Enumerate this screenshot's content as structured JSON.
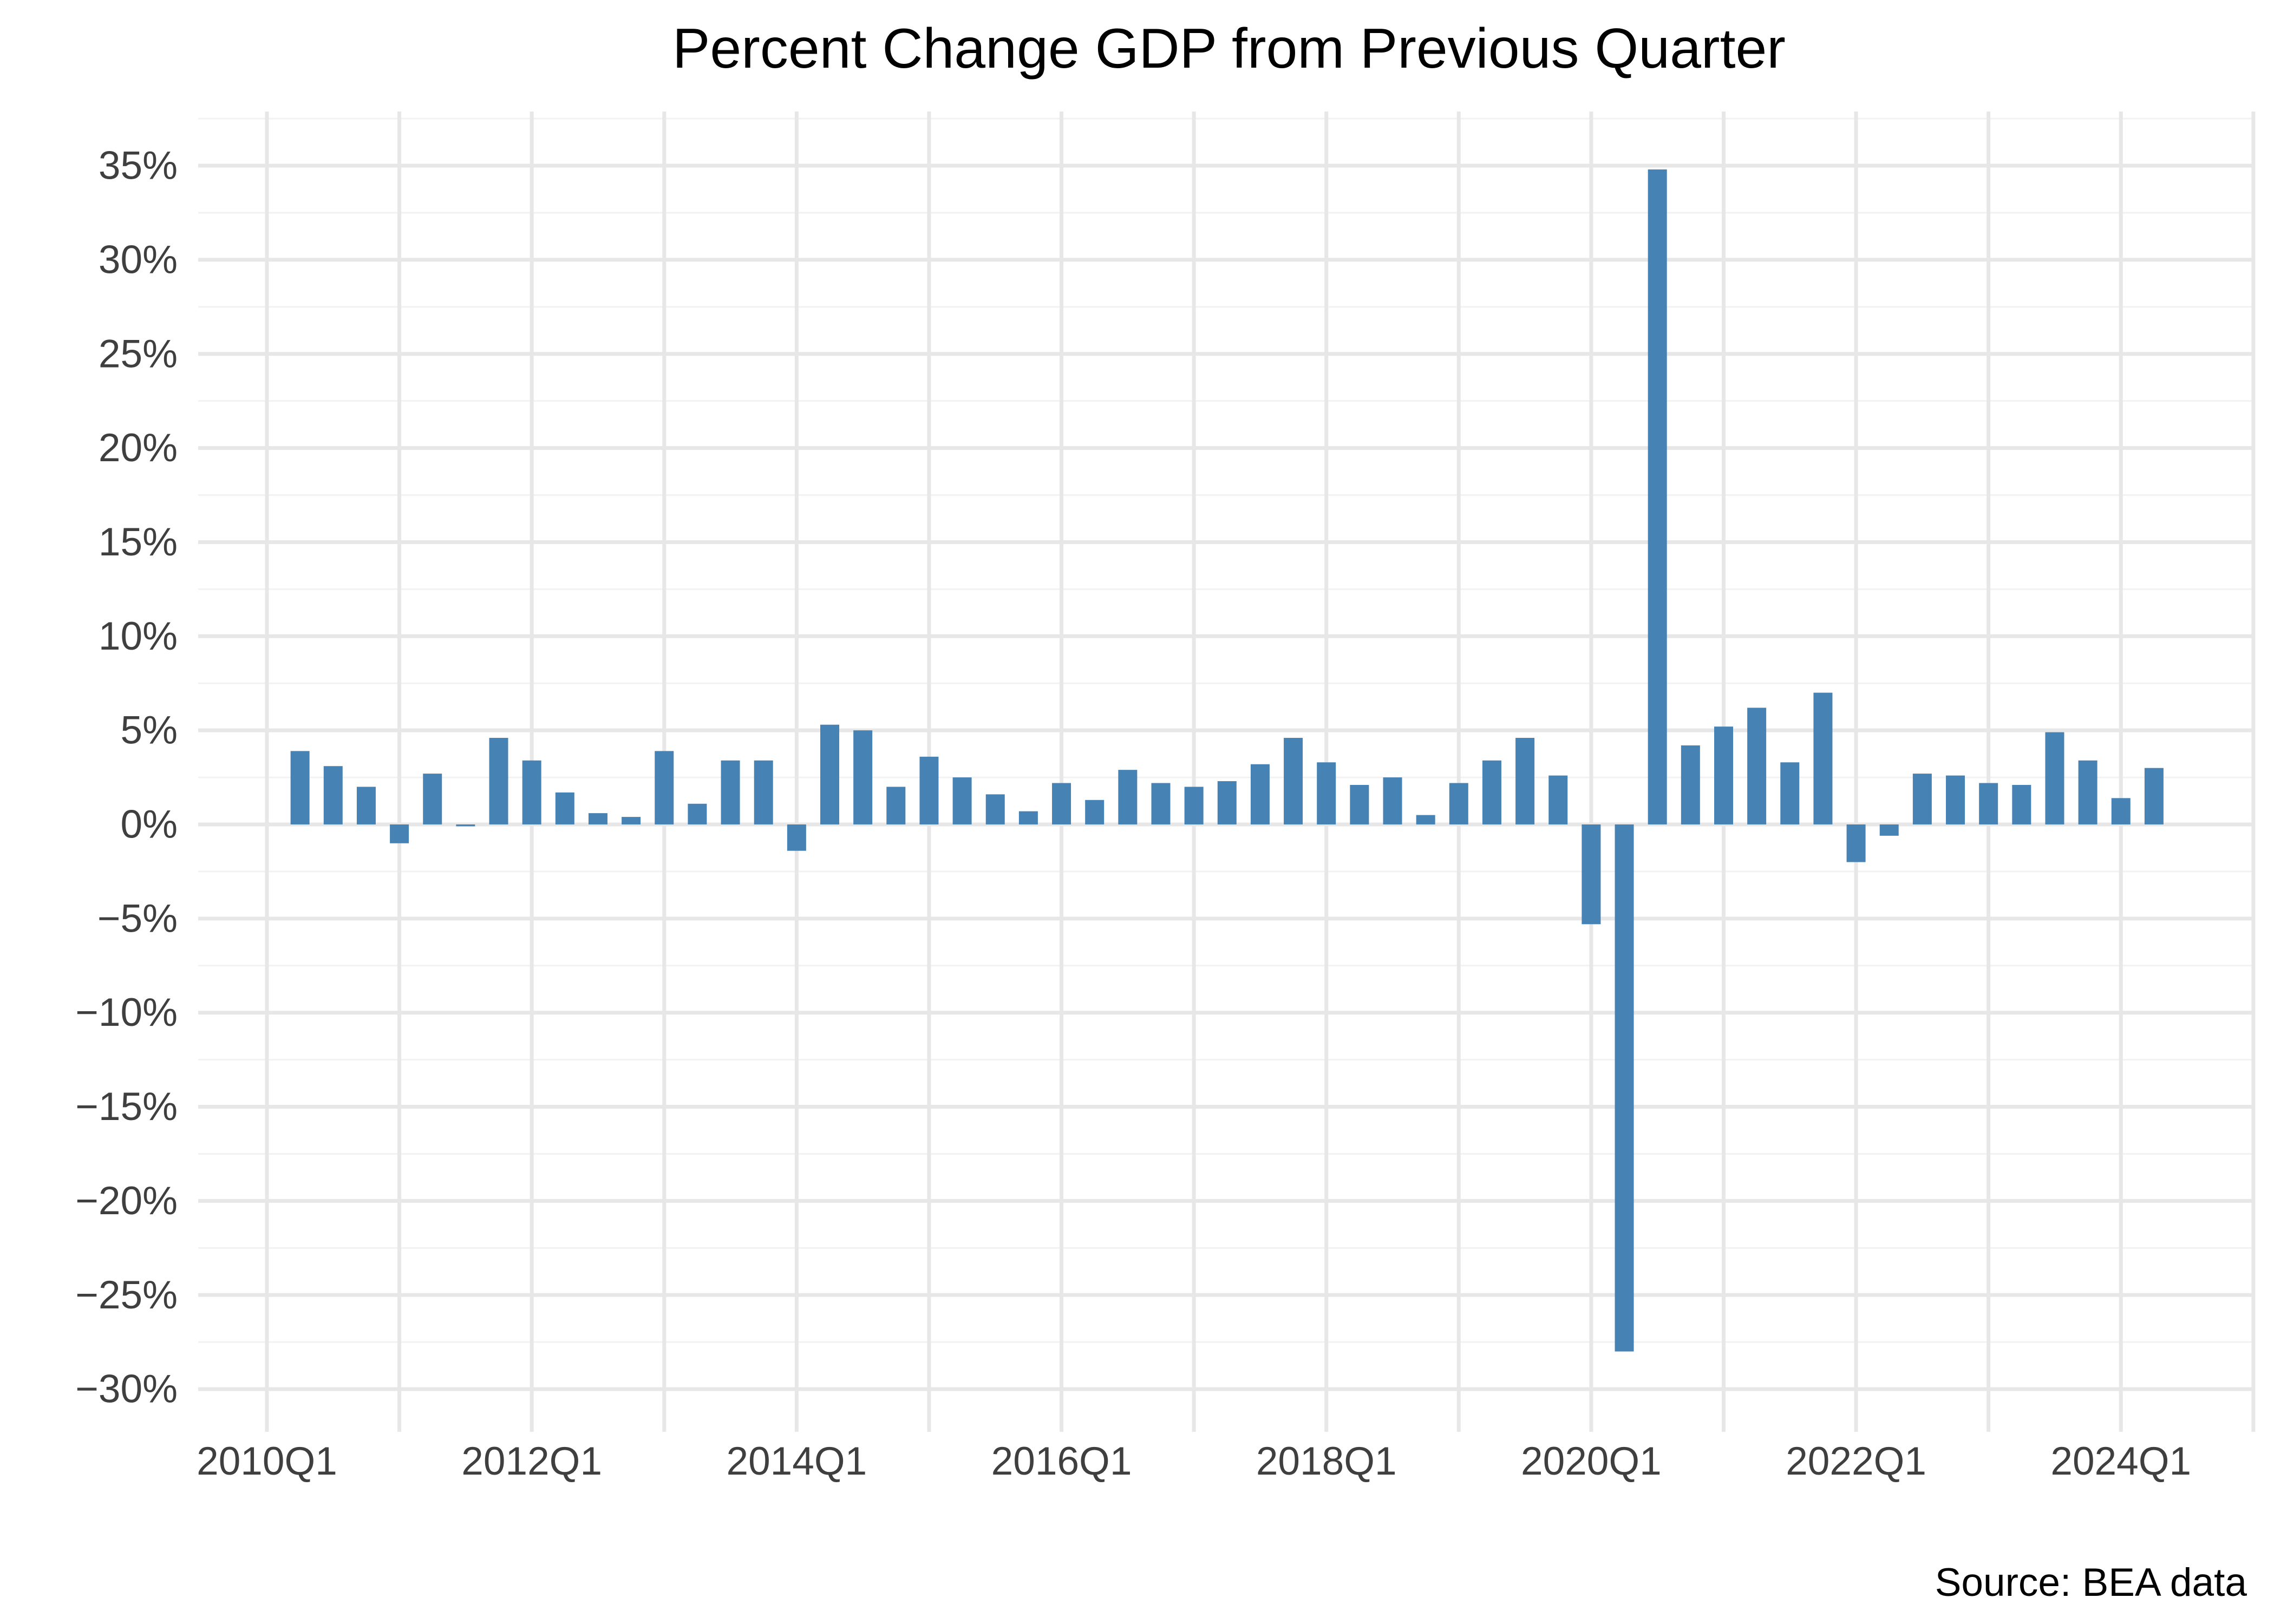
{
  "chart_data": {
    "type": "bar",
    "title": "Percent Change GDP from Previous Quarter",
    "source_note": "Source: BEA data",
    "ylabel": "",
    "xlabel": "",
    "unit": "percent, quarterly annualized rate",
    "legend": "none",
    "grid": "major+minor",
    "bar_color": "#4682B4",
    "ylim": [
      -32.5,
      37.5
    ],
    "y_major_step": 5,
    "y_minor_step": 2.5,
    "x_year_range": [
      2010,
      2025
    ],
    "quarters": [
      "2010Q2",
      "2010Q3",
      "2010Q4",
      "2011Q1",
      "2011Q2",
      "2011Q3",
      "2011Q4",
      "2012Q1",
      "2012Q2",
      "2012Q3",
      "2012Q4",
      "2013Q1",
      "2013Q2",
      "2013Q3",
      "2013Q4",
      "2014Q1",
      "2014Q2",
      "2014Q3",
      "2014Q4",
      "2015Q1",
      "2015Q2",
      "2015Q3",
      "2015Q4",
      "2016Q1",
      "2016Q2",
      "2016Q3",
      "2016Q4",
      "2017Q1",
      "2017Q2",
      "2017Q3",
      "2017Q4",
      "2018Q1",
      "2018Q2",
      "2018Q3",
      "2018Q4",
      "2019Q1",
      "2019Q2",
      "2019Q3",
      "2019Q4",
      "2020Q1",
      "2020Q2",
      "2020Q3",
      "2020Q4",
      "2021Q1",
      "2021Q2",
      "2021Q3",
      "2021Q4",
      "2022Q1",
      "2022Q2",
      "2022Q3",
      "2022Q4",
      "2023Q1",
      "2023Q2",
      "2023Q3",
      "2023Q4",
      "2024Q1",
      "2024Q2"
    ],
    "values": [
      3.9,
      3.1,
      2.0,
      -1.0,
      2.7,
      -0.1,
      4.6,
      3.4,
      1.7,
      0.6,
      0.4,
      3.9,
      1.1,
      3.4,
      3.4,
      -1.4,
      5.3,
      5.0,
      2.0,
      3.6,
      2.5,
      1.6,
      0.7,
      2.2,
      1.3,
      2.9,
      2.2,
      2.0,
      2.3,
      3.2,
      4.6,
      3.3,
      2.1,
      2.5,
      0.5,
      2.2,
      3.4,
      4.6,
      2.6,
      -5.3,
      -28.0,
      34.8,
      4.2,
      5.2,
      6.2,
      3.3,
      7.0,
      -2.0,
      -0.6,
      2.7,
      2.6,
      2.2,
      2.1,
      4.9,
      3.4,
      1.4,
      3.0
    ],
    "x_ticks": [
      {
        "label": "2010Q1",
        "year": 2010
      },
      {
        "label": "2012Q1",
        "year": 2012
      },
      {
        "label": "2014Q1",
        "year": 2014
      },
      {
        "label": "2016Q1",
        "year": 2016
      },
      {
        "label": "2018Q1",
        "year": 2018
      },
      {
        "label": "2020Q1",
        "year": 2020
      },
      {
        "label": "2022Q1",
        "year": 2022
      },
      {
        "label": "2024Q1",
        "year": 2024
      }
    ],
    "y_ticks": [
      {
        "label": "35%",
        "value": 35
      },
      {
        "label": "30%",
        "value": 30
      },
      {
        "label": "25%",
        "value": 25
      },
      {
        "label": "20%",
        "value": 20
      },
      {
        "label": "15%",
        "value": 15
      },
      {
        "label": "10%",
        "value": 10
      },
      {
        "label": "5%",
        "value": 5
      },
      {
        "label": "0%",
        "value": 0
      },
      {
        "label": "−5%",
        "value": -5
      },
      {
        "label": "−10%",
        "value": -10
      },
      {
        "label": "−15%",
        "value": -15
      },
      {
        "label": "−20%",
        "value": -20
      },
      {
        "label": "−25%",
        "value": -25
      },
      {
        "label": "−30%",
        "value": -30
      }
    ]
  },
  "colors": {
    "bar": "#4682B4",
    "grid_major": "#e7e7e7",
    "grid_minor": "#f2f2f2",
    "tick_text": "#3f3f3f",
    "title_text": "#000000",
    "background": "#ffffff"
  }
}
